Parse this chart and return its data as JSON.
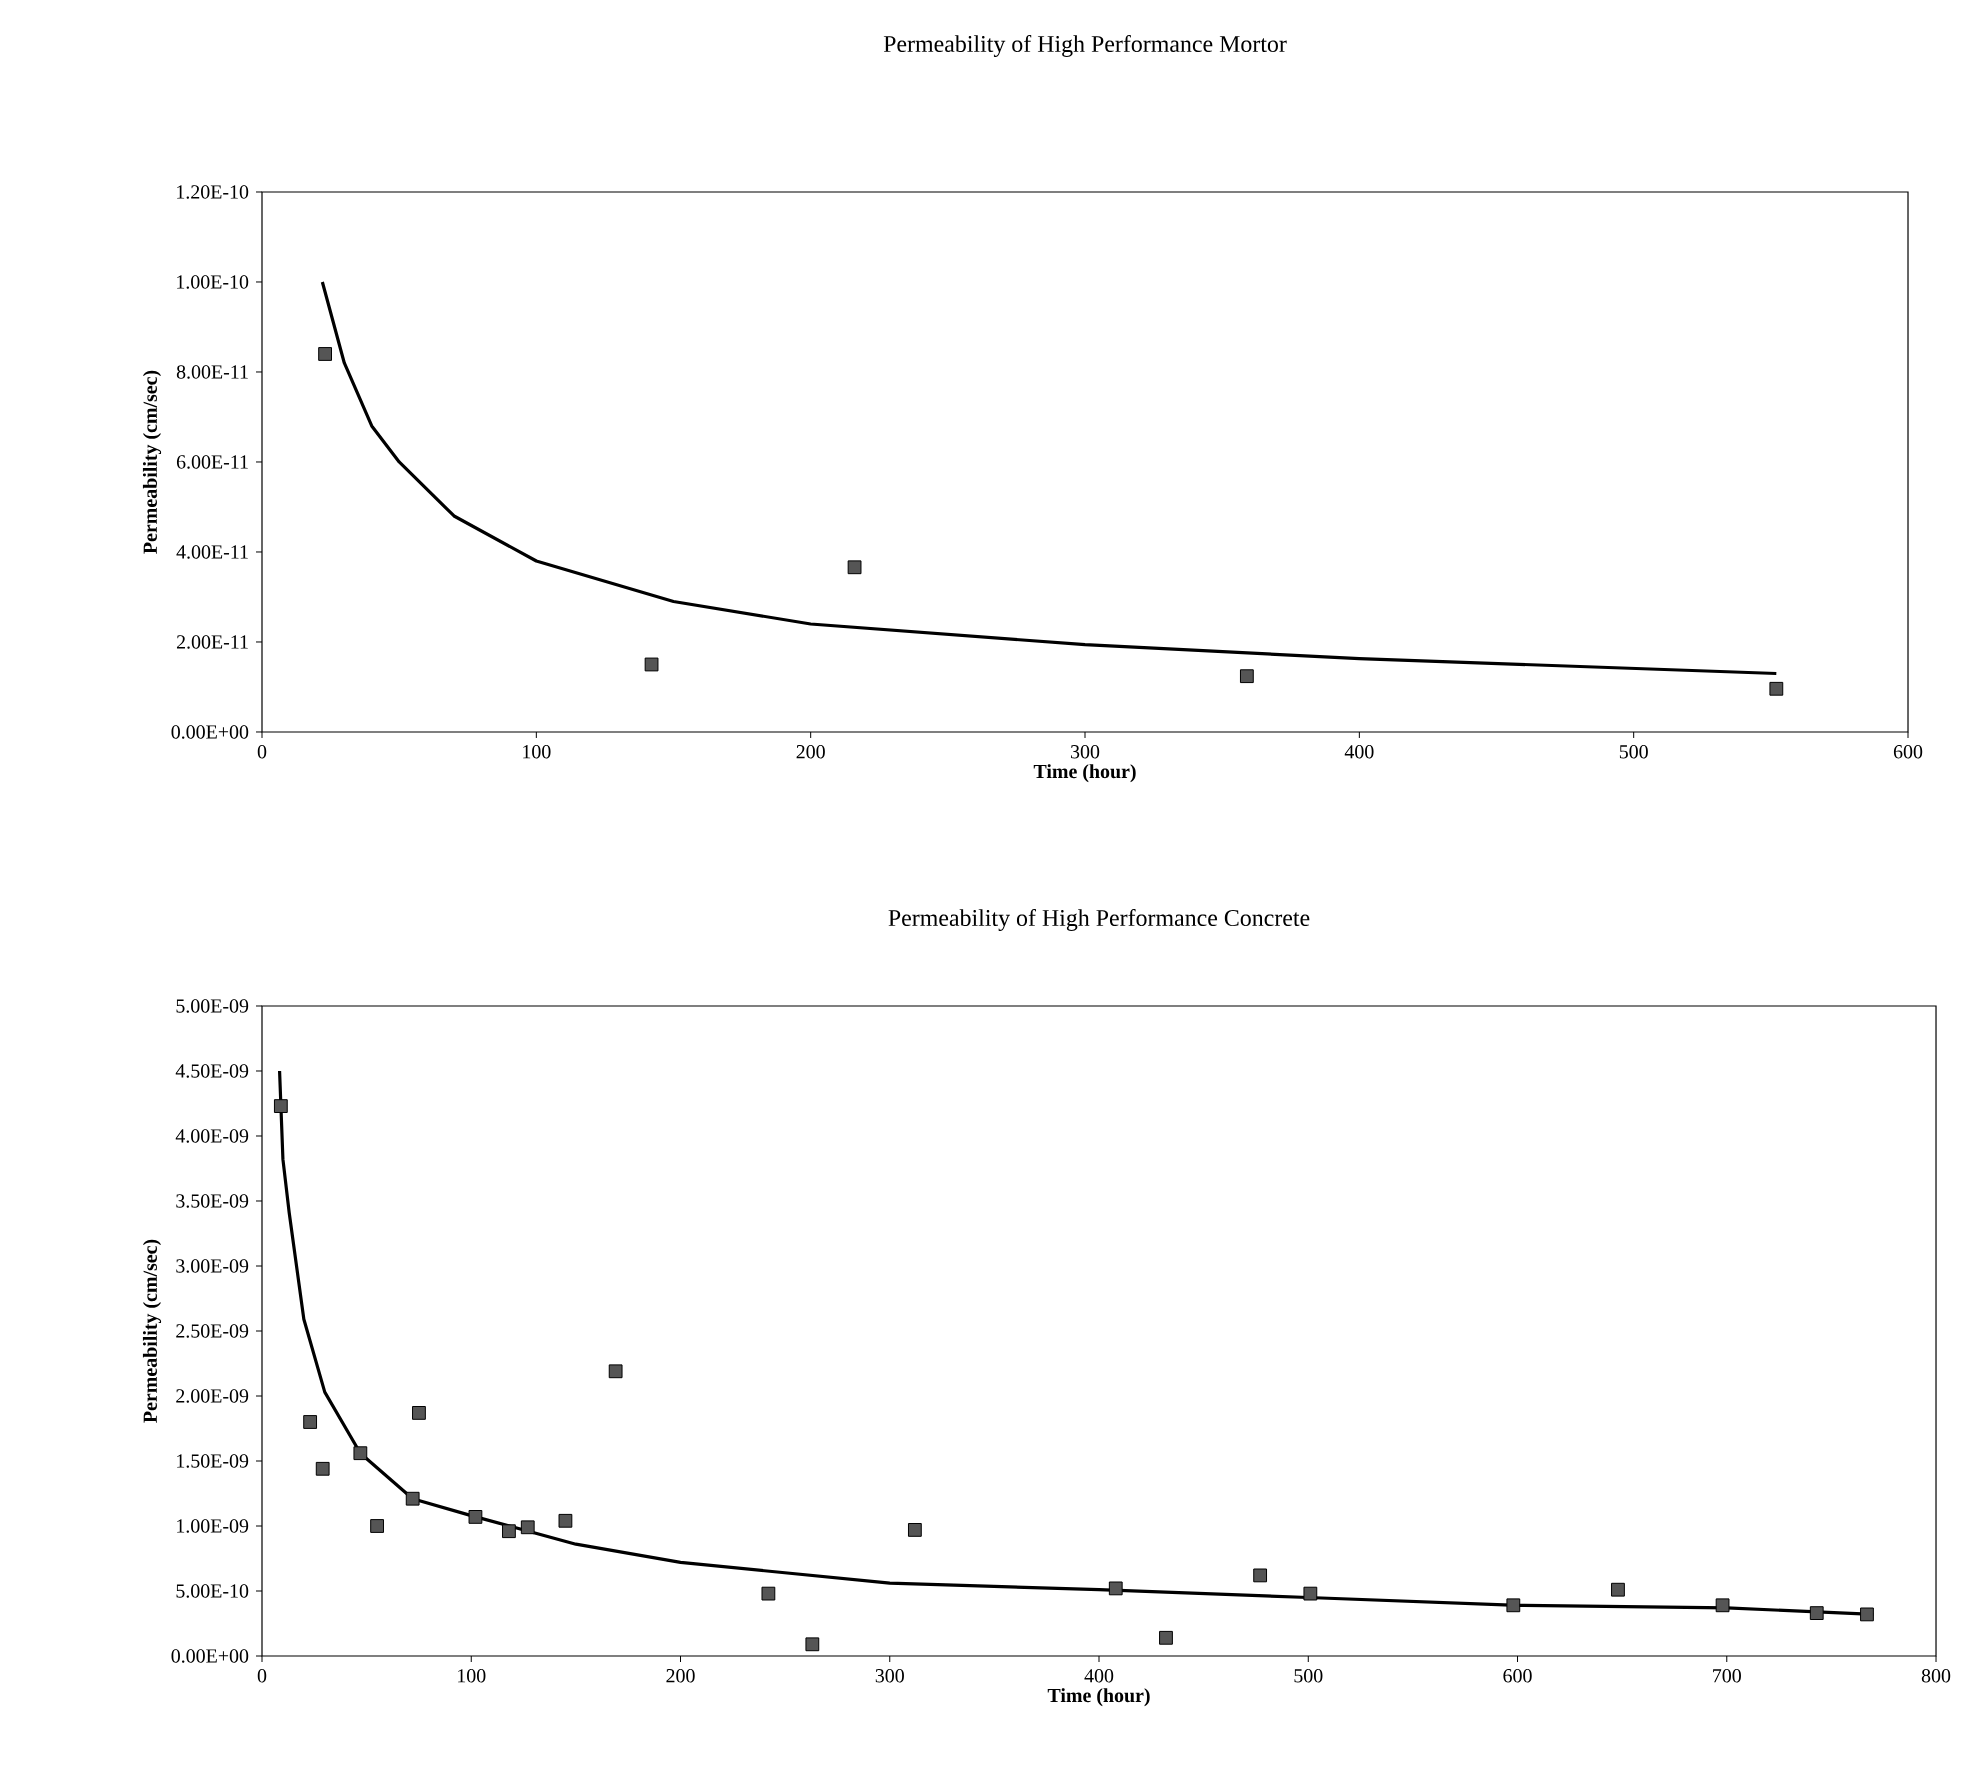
{
  "chart_data": [
    {
      "type": "scatter",
      "title": "Permeability of High Performance Mortor",
      "xlabel": "Time (hour)",
      "ylabel": "Permeability (cm/sec)",
      "grid": false,
      "xlim": [
        0,
        600
      ],
      "xticks": [
        0,
        100,
        200,
        300,
        400,
        500,
        600
      ],
      "ylim": [
        0,
        1.2e-10
      ],
      "yticks": [
        {
          "value": 0,
          "label": "0.00E+00"
        },
        {
          "value": 2e-11,
          "label": "2.00E-11"
        },
        {
          "value": 4e-11,
          "label": "4.00E-11"
        },
        {
          "value": 6e-11,
          "label": "6.00E-11"
        },
        {
          "value": 8e-11,
          "label": "8.00E-11"
        },
        {
          "value": 1e-10,
          "label": "1.00E-10"
        },
        {
          "value": 1.2e-10,
          "label": "1.20E-10"
        }
      ],
      "series": [
        {
          "marker": "square",
          "color": "#555555",
          "x": [
            23,
            142,
            216,
            359,
            552
          ],
          "values": [
            8.4e-11,
            1.5e-11,
            3.66e-11,
            1.24e-11,
            9.6e-12
          ]
        },
        {
          "type": "line",
          "marker": "none",
          "color": "#000000",
          "x": [
            22,
            30,
            40,
            50,
            70,
            100,
            150,
            200,
            300,
            400,
            552
          ],
          "values": [
            1e-10,
            8.2e-11,
            6.8e-11,
            6e-11,
            4.8e-11,
            3.8e-11,
            2.9e-11,
            2.4e-11,
            1.94e-11,
            1.63e-11,
            1.3e-11
          ]
        }
      ]
    },
    {
      "type": "scatter",
      "title": "Permeability of High Performance Concrete",
      "xlabel": "Time (hour)",
      "ylabel": "Permeability (cm/sec)",
      "grid": false,
      "xlim": [
        0,
        800
      ],
      "xticks": [
        0,
        100,
        200,
        300,
        400,
        500,
        600,
        700,
        800
      ],
      "ylim": [
        0,
        5e-09
      ],
      "yticks": [
        {
          "value": 0,
          "label": "0.00E+00"
        },
        {
          "value": 5e-10,
          "label": "5.00E-10"
        },
        {
          "value": 1e-09,
          "label": "1.00E-09"
        },
        {
          "value": 1.5e-09,
          "label": "1.50E-09"
        },
        {
          "value": 2e-09,
          "label": "2.00E-09"
        },
        {
          "value": 2.5e-09,
          "label": "2.50E-09"
        },
        {
          "value": 3e-09,
          "label": "3.00E-09"
        },
        {
          "value": 3.5e-09,
          "label": "3.50E-09"
        },
        {
          "value": 4e-09,
          "label": "4.00E-09"
        },
        {
          "value": 4.5e-09,
          "label": "4.50E-09"
        },
        {
          "value": 5e-09,
          "label": "5.00E-09"
        }
      ],
      "series": [
        {
          "marker": "square",
          "color": "#555555",
          "x": [
            9,
            23,
            29,
            47,
            55,
            72,
            75,
            102,
            118,
            127,
            145,
            169,
            242,
            263,
            312,
            408,
            432,
            477,
            501,
            598,
            648,
            698,
            743,
            767
          ],
          "values": [
            4.23e-09,
            1.8e-09,
            1.44e-09,
            1.56e-09,
            1e-09,
            1.21e-09,
            1.87e-09,
            1.07e-09,
            9.6e-10,
            9.9e-10,
            1.04e-09,
            2.19e-09,
            4.8e-10,
            9e-11,
            9.7e-10,
            5.2e-10,
            1.4e-10,
            6.2e-10,
            4.8e-10,
            3.9e-10,
            5.1e-10,
            3.9e-10,
            3.3e-10,
            3.2e-10
          ]
        },
        {
          "type": "line",
          "marker": "none",
          "color": "#000000",
          "x": [
            8.4,
            10,
            13,
            20,
            30,
            47,
            72,
            100,
            150,
            200,
            300,
            400,
            500,
            600,
            700,
            770
          ],
          "values": [
            4.5e-09,
            3.82e-09,
            3.41e-09,
            2.59e-09,
            2.03e-09,
            1.56e-09,
            1.21e-09,
            1.08e-09,
            8.6e-10,
            7.2e-10,
            5.6e-10,
            5.1e-10,
            4.5e-10,
            3.9e-10,
            3.7e-10,
            3.2e-10
          ]
        }
      ]
    }
  ]
}
